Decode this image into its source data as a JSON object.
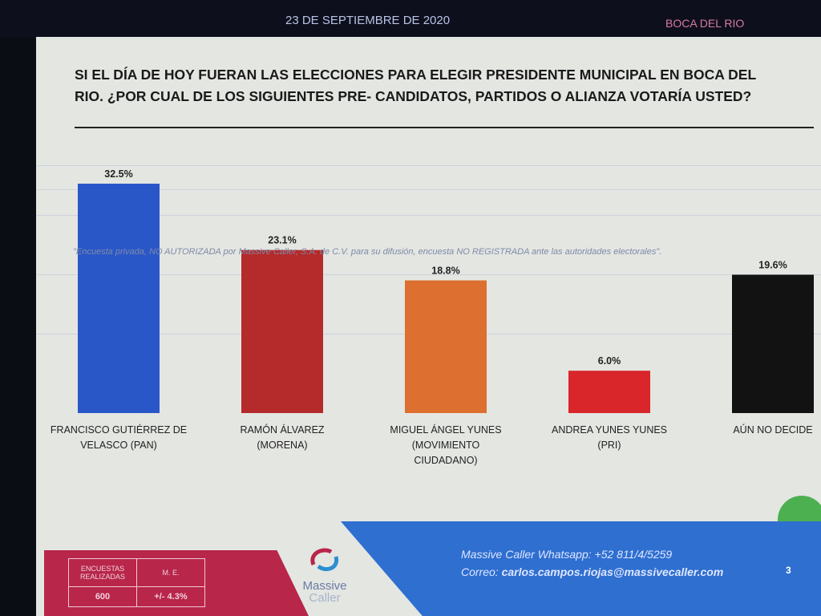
{
  "header": {
    "date": "23 DE SEPTIEMBRE DE 2020",
    "region": "BOCA DEL RIO"
  },
  "title": {
    "line1": "SI EL DÍA DE HOY FUERAN LAS ELECCIONES PARA ELEGIR PRESIDENTE MUNICIPAL EN BOCA DEL",
    "line2": "RIO. ¿POR CUAL DE LOS SIGUIENTES PRE- CANDIDATOS, PARTIDOS O ALIANZA VOTARÍA USTED?"
  },
  "watermark": "\"Encuesta privada, NO AUTORIZADA por Massive Caller, S.A. de C.V. para su difusión, encuesta NO REGISTRADA ante las autoridades electorales\".",
  "chart_data": {
    "type": "bar",
    "title": "SI EL DÍA DE HOY FUERAN LAS ELECCIONES PARA ELEGIR PRESIDENTE MUNICIPAL EN BOCA DEL RIO. ¿POR CUAL DE LOS SIGUIENTES PRE- CANDIDATOS, PARTIDOS O ALIANZA VOTARÍA USTED?",
    "categories": [
      [
        "FRANCISCO GUTIÉRREZ DE",
        "VELASCO (PAN)"
      ],
      [
        "RAMÓN ÁLVAREZ",
        "(MORENA)"
      ],
      [
        "MIGUEL ÁNGEL YUNES",
        "(MOVIMIENTO",
        "CIUDADANO)"
      ],
      [
        "ANDREA YUNES YUNES",
        "(PRI)"
      ],
      [
        "AÚN NO DECIDE"
      ]
    ],
    "values": [
      32.5,
      23.1,
      18.8,
      6.0,
      19.6
    ],
    "value_labels": [
      "32.5%",
      "23.1%",
      "18.8%",
      "6.0%",
      "19.6%"
    ],
    "colors": [
      "#2a57c8",
      "#b52a2a",
      "#dd6f30",
      "#d8262a",
      "#121212"
    ],
    "xlabel": "",
    "ylabel": "",
    "ylim": [
      0,
      35
    ],
    "grid": true,
    "legend": "none"
  },
  "footer": {
    "stats_headers": [
      "ENCUESTAS REALIZADAS",
      "M. E."
    ],
    "stats_values": [
      "600",
      "+/- 4.3%"
    ],
    "logo_line1": "Massive",
    "logo_line2": "Caller",
    "whatsapp_label": "Massive Caller Whatsapp:",
    "whatsapp_number": "+52 811/4/5259",
    "email_label": "Correo:",
    "email": "carlos.campos.riojas@massivecaller.com",
    "page_number": "3"
  }
}
